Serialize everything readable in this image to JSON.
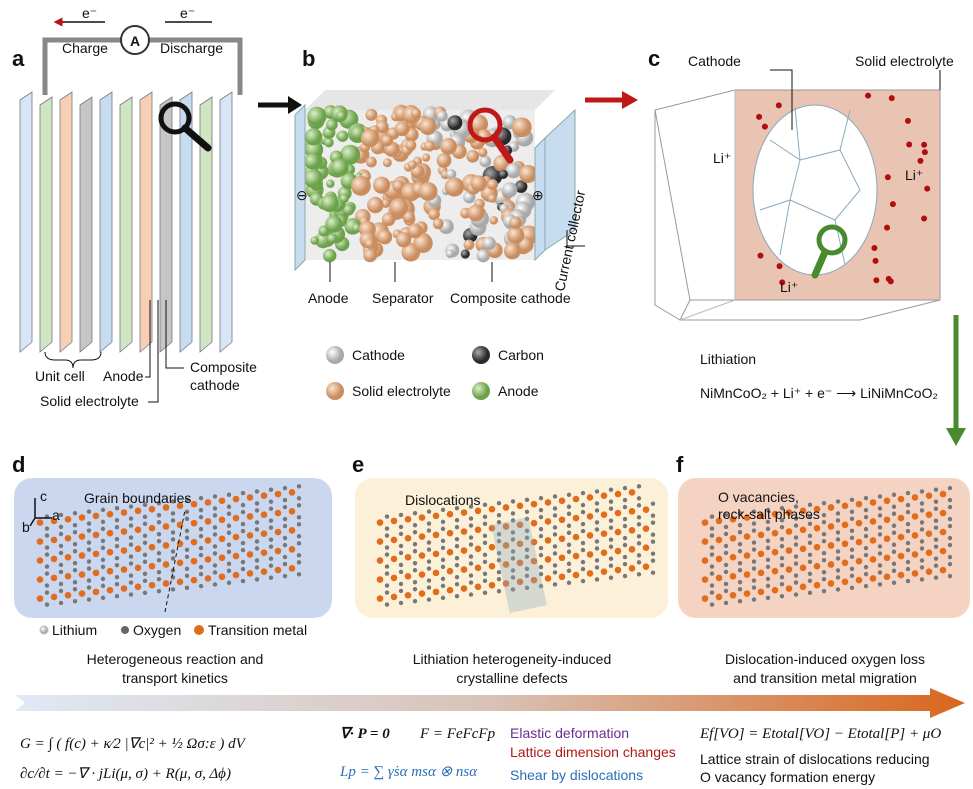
{
  "panel_a": {
    "letter": "a",
    "electron_left": "e⁻",
    "electron_right": "e⁻",
    "ammeter": "A",
    "charge": "Charge",
    "discharge": "Discharge",
    "unit_cell": "Unit cell",
    "anode": "Anode",
    "solid_electrolyte": "Solid electrolyte",
    "composite_cathode": [
      "Composite",
      "cathode"
    ]
  },
  "panel_b": {
    "letter": "b",
    "minus": "⊖",
    "plus": "⊕",
    "anode": "Anode",
    "separator": "Separator",
    "composite_cathode": "Composite cathode",
    "current_collector": "Current collector",
    "legend": [
      "Cathode",
      "Carbon",
      "Solid electrolyte",
      "Anode"
    ]
  },
  "panel_c": {
    "letter": "c",
    "cathode": "Cathode",
    "solid_electrolyte": "Solid electrolyte",
    "li_ion": [
      "Li⁺",
      "Li⁺",
      "Li⁺"
    ],
    "lithiation": "Lithiation",
    "reaction": "NiMnCoO₂ + Li⁺ + e⁻ ⟶ LiNiMnCoO₂"
  },
  "panel_d": {
    "letter": "d",
    "title": "Grain boundaries",
    "axes": [
      "c",
      "a",
      "b"
    ],
    "legend": [
      "Lithium",
      "Oxygen",
      "Transition metal"
    ],
    "caption": [
      "Heterogeneous reaction and",
      "transport kinetics"
    ]
  },
  "panel_e": {
    "letter": "e",
    "title": "Dislocations",
    "caption": [
      "Lithiation heterogeneity-induced",
      "crystalline defects"
    ]
  },
  "panel_f": {
    "letter": "f",
    "title": [
      "O vacancies,",
      "rock-salt phases"
    ],
    "caption": [
      "Dislocation-induced oxygen loss",
      "and transition metal migration"
    ]
  },
  "equations": {
    "free_energy": "G = ∫ ( f(c) + κ⁄2 |∇c|² + ½ Ωσ:ε ) dV",
    "diffusion": "∂c/∂t = −∇ · jLi(μ, σ) + R(μ, σ, Δϕ)",
    "equilibrium": "∇· P = 0",
    "decomposition": "F = FeFcFp",
    "plastic_rate": "Lp = ∑ γ̇sα msα ⊗ nsα",
    "terms": [
      "Elastic deformation",
      "Lattice dimension changes",
      "Shear by dislocations"
    ],
    "vacancy_energy": "Ef[VO] = Etotal[VO] − Etotal[P] + μO",
    "vacancy_note": [
      "Lattice strain of dislocations reducing",
      "O vacancy formation energy"
    ]
  }
}
